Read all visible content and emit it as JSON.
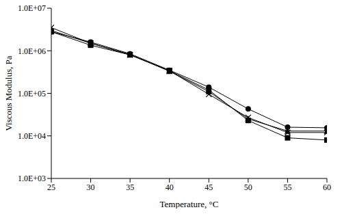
{
  "chart_data": {
    "type": "line",
    "x_label": "Temperature, °C",
    "y_label": "Viscous Modulus, Pa",
    "log": "y",
    "grid": false,
    "x": [
      25,
      30,
      35,
      40,
      45,
      50,
      55,
      60
    ],
    "xlim": [
      25,
      60
    ],
    "xticks": [
      25,
      30,
      35,
      40,
      45,
      50,
      55,
      60
    ],
    "ylim": [
      1000,
      10000000
    ],
    "yticks": [
      {
        "value": 1000,
        "label": "1.0E+03"
      },
      {
        "value": 10000,
        "label": "1.0E+04"
      },
      {
        "value": 100000,
        "label": "1.0E+05"
      },
      {
        "value": 1000000,
        "label": "1.0E+06"
      },
      {
        "value": 10000000,
        "label": "1.0E+07"
      }
    ],
    "series": [
      {
        "color": "#000000",
        "marker": "circle",
        "values": [
          2800000,
          1600000,
          850000,
          350000,
          140000,
          43000,
          16000,
          15500
        ]
      },
      {
        "color": "#000000",
        "marker": "square",
        "values": [
          2800000,
          1350000,
          800000,
          340000,
          120000,
          23000,
          9000,
          8000
        ]
      },
      {
        "color": "#000000",
        "marker": "triangle",
        "values": [
          3000000,
          1500000,
          820000,
          330000,
          110000,
          25000,
          13000,
          13000
        ]
      },
      {
        "color": "#000000",
        "marker": "x",
        "values": [
          3500000,
          1500000,
          800000,
          340000,
          95000,
          27000,
          12000,
          12000
        ]
      }
    ]
  }
}
